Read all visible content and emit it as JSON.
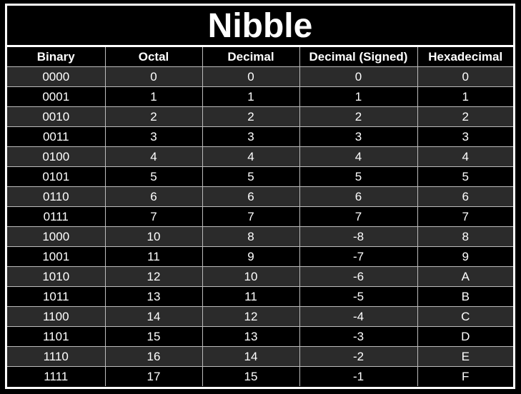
{
  "title": "Nibble",
  "headers": [
    "Binary",
    "Octal",
    "Decimal",
    "Decimal (Signed)",
    "Hexadecimal"
  ],
  "rows": [
    [
      "0000",
      "0",
      "0",
      "0",
      "0"
    ],
    [
      "0001",
      "1",
      "1",
      "1",
      "1"
    ],
    [
      "0010",
      "2",
      "2",
      "2",
      "2"
    ],
    [
      "0011",
      "3",
      "3",
      "3",
      "3"
    ],
    [
      "0100",
      "4",
      "4",
      "4",
      "4"
    ],
    [
      "0101",
      "5",
      "5",
      "5",
      "5"
    ],
    [
      "0110",
      "6",
      "6",
      "6",
      "6"
    ],
    [
      "0111",
      "7",
      "7",
      "7",
      "7"
    ],
    [
      "1000",
      "10",
      "8",
      "-8",
      "8"
    ],
    [
      "1001",
      "11",
      "9",
      "-7",
      "9"
    ],
    [
      "1010",
      "12",
      "10",
      "-6",
      "A"
    ],
    [
      "1011",
      "13",
      "11",
      "-5",
      "B"
    ],
    [
      "1100",
      "14",
      "12",
      "-4",
      "C"
    ],
    [
      "1101",
      "15",
      "13",
      "-3",
      "D"
    ],
    [
      "1110",
      "16",
      "14",
      "-2",
      "E"
    ],
    [
      "1111",
      "17",
      "15",
      "-1",
      "F"
    ]
  ],
  "colors": {
    "background": "#000000",
    "text": "#ffffff",
    "row_alt": "#2b2b2b",
    "border": "#ffffff",
    "grid": "#bdbdbd"
  }
}
